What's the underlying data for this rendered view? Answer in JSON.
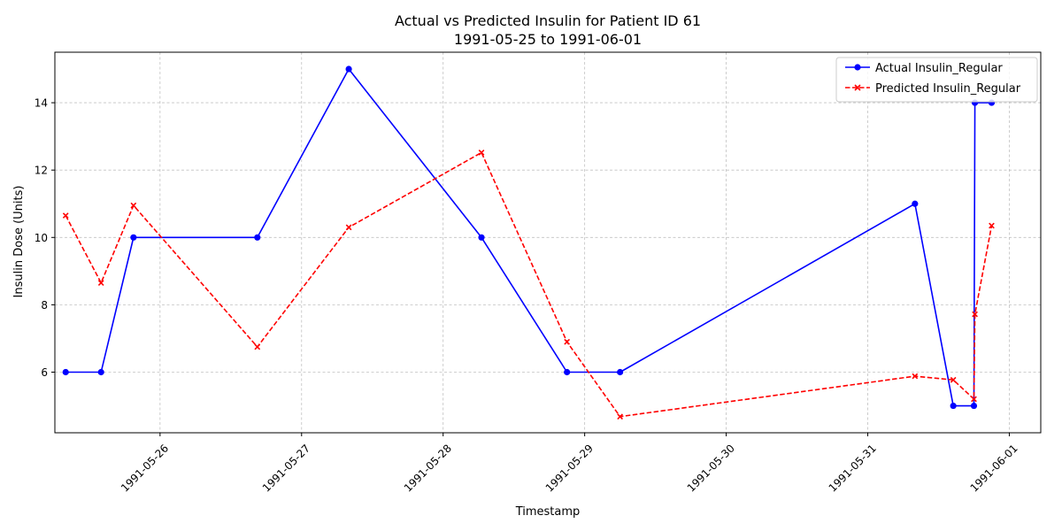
{
  "chart_data": {
    "type": "line",
    "title": "Actual vs Predicted Insulin for Patient ID 61",
    "subtitle": "1991-05-25 to 1991-06-01",
    "xlabel": "Timestamp",
    "ylabel": "Insulin Dose (Units)",
    "xlim": [
      "1991-05-25T06:10",
      "1991-06-01T05:20"
    ],
    "ylim": [
      4.2,
      15.5
    ],
    "x_ticks": [
      "1991-05-26",
      "1991-05-27",
      "1991-05-28",
      "1991-05-29",
      "1991-05-30",
      "1991-05-31",
      "1991-06-01"
    ],
    "y_ticks": [
      6,
      8,
      10,
      12,
      14
    ],
    "grid": true,
    "legend_position": "top-right",
    "series": [
      {
        "name": "Actual Insulin_Regular",
        "color": "#0000ff",
        "line_style": "solid",
        "marker": "circle",
        "points": [
          {
            "x": "1991-05-25T08:00",
            "y": 6
          },
          {
            "x": "1991-05-25T14:00",
            "y": 6
          },
          {
            "x": "1991-05-25T19:30",
            "y": 10
          },
          {
            "x": "1991-05-26T16:30",
            "y": 10
          },
          {
            "x": "1991-05-27T08:00",
            "y": 15
          },
          {
            "x": "1991-05-28T06:30",
            "y": 10
          },
          {
            "x": "1991-05-28T21:00",
            "y": 6
          },
          {
            "x": "1991-05-29T06:00",
            "y": 6
          },
          {
            "x": "1991-05-31T08:00",
            "y": 11
          },
          {
            "x": "1991-05-31T14:30",
            "y": 5
          },
          {
            "x": "1991-05-31T18:00",
            "y": 5
          },
          {
            "x": "1991-05-31T18:10",
            "y": 14
          },
          {
            "x": "1991-05-31T21:00",
            "y": 14
          }
        ]
      },
      {
        "name": "Predicted Insulin_Regular",
        "color": "#ff0000",
        "line_style": "dashed",
        "marker": "x",
        "points": [
          {
            "x": "1991-05-25T08:00",
            "y": 10.65
          },
          {
            "x": "1991-05-25T14:00",
            "y": 8.65
          },
          {
            "x": "1991-05-25T19:30",
            "y": 10.95
          },
          {
            "x": "1991-05-26T16:30",
            "y": 6.75
          },
          {
            "x": "1991-05-27T08:00",
            "y": 10.3
          },
          {
            "x": "1991-05-28T06:30",
            "y": 12.52
          },
          {
            "x": "1991-05-28T21:00",
            "y": 6.9
          },
          {
            "x": "1991-05-29T06:00",
            "y": 4.68
          },
          {
            "x": "1991-05-31T08:00",
            "y": 5.88
          },
          {
            "x": "1991-05-31T14:30",
            "y": 5.77
          },
          {
            "x": "1991-05-31T18:00",
            "y": 5.2
          },
          {
            "x": "1991-05-31T18:10",
            "y": 7.72
          },
          {
            "x": "1991-05-31T21:00",
            "y": 10.35
          }
        ]
      }
    ]
  }
}
